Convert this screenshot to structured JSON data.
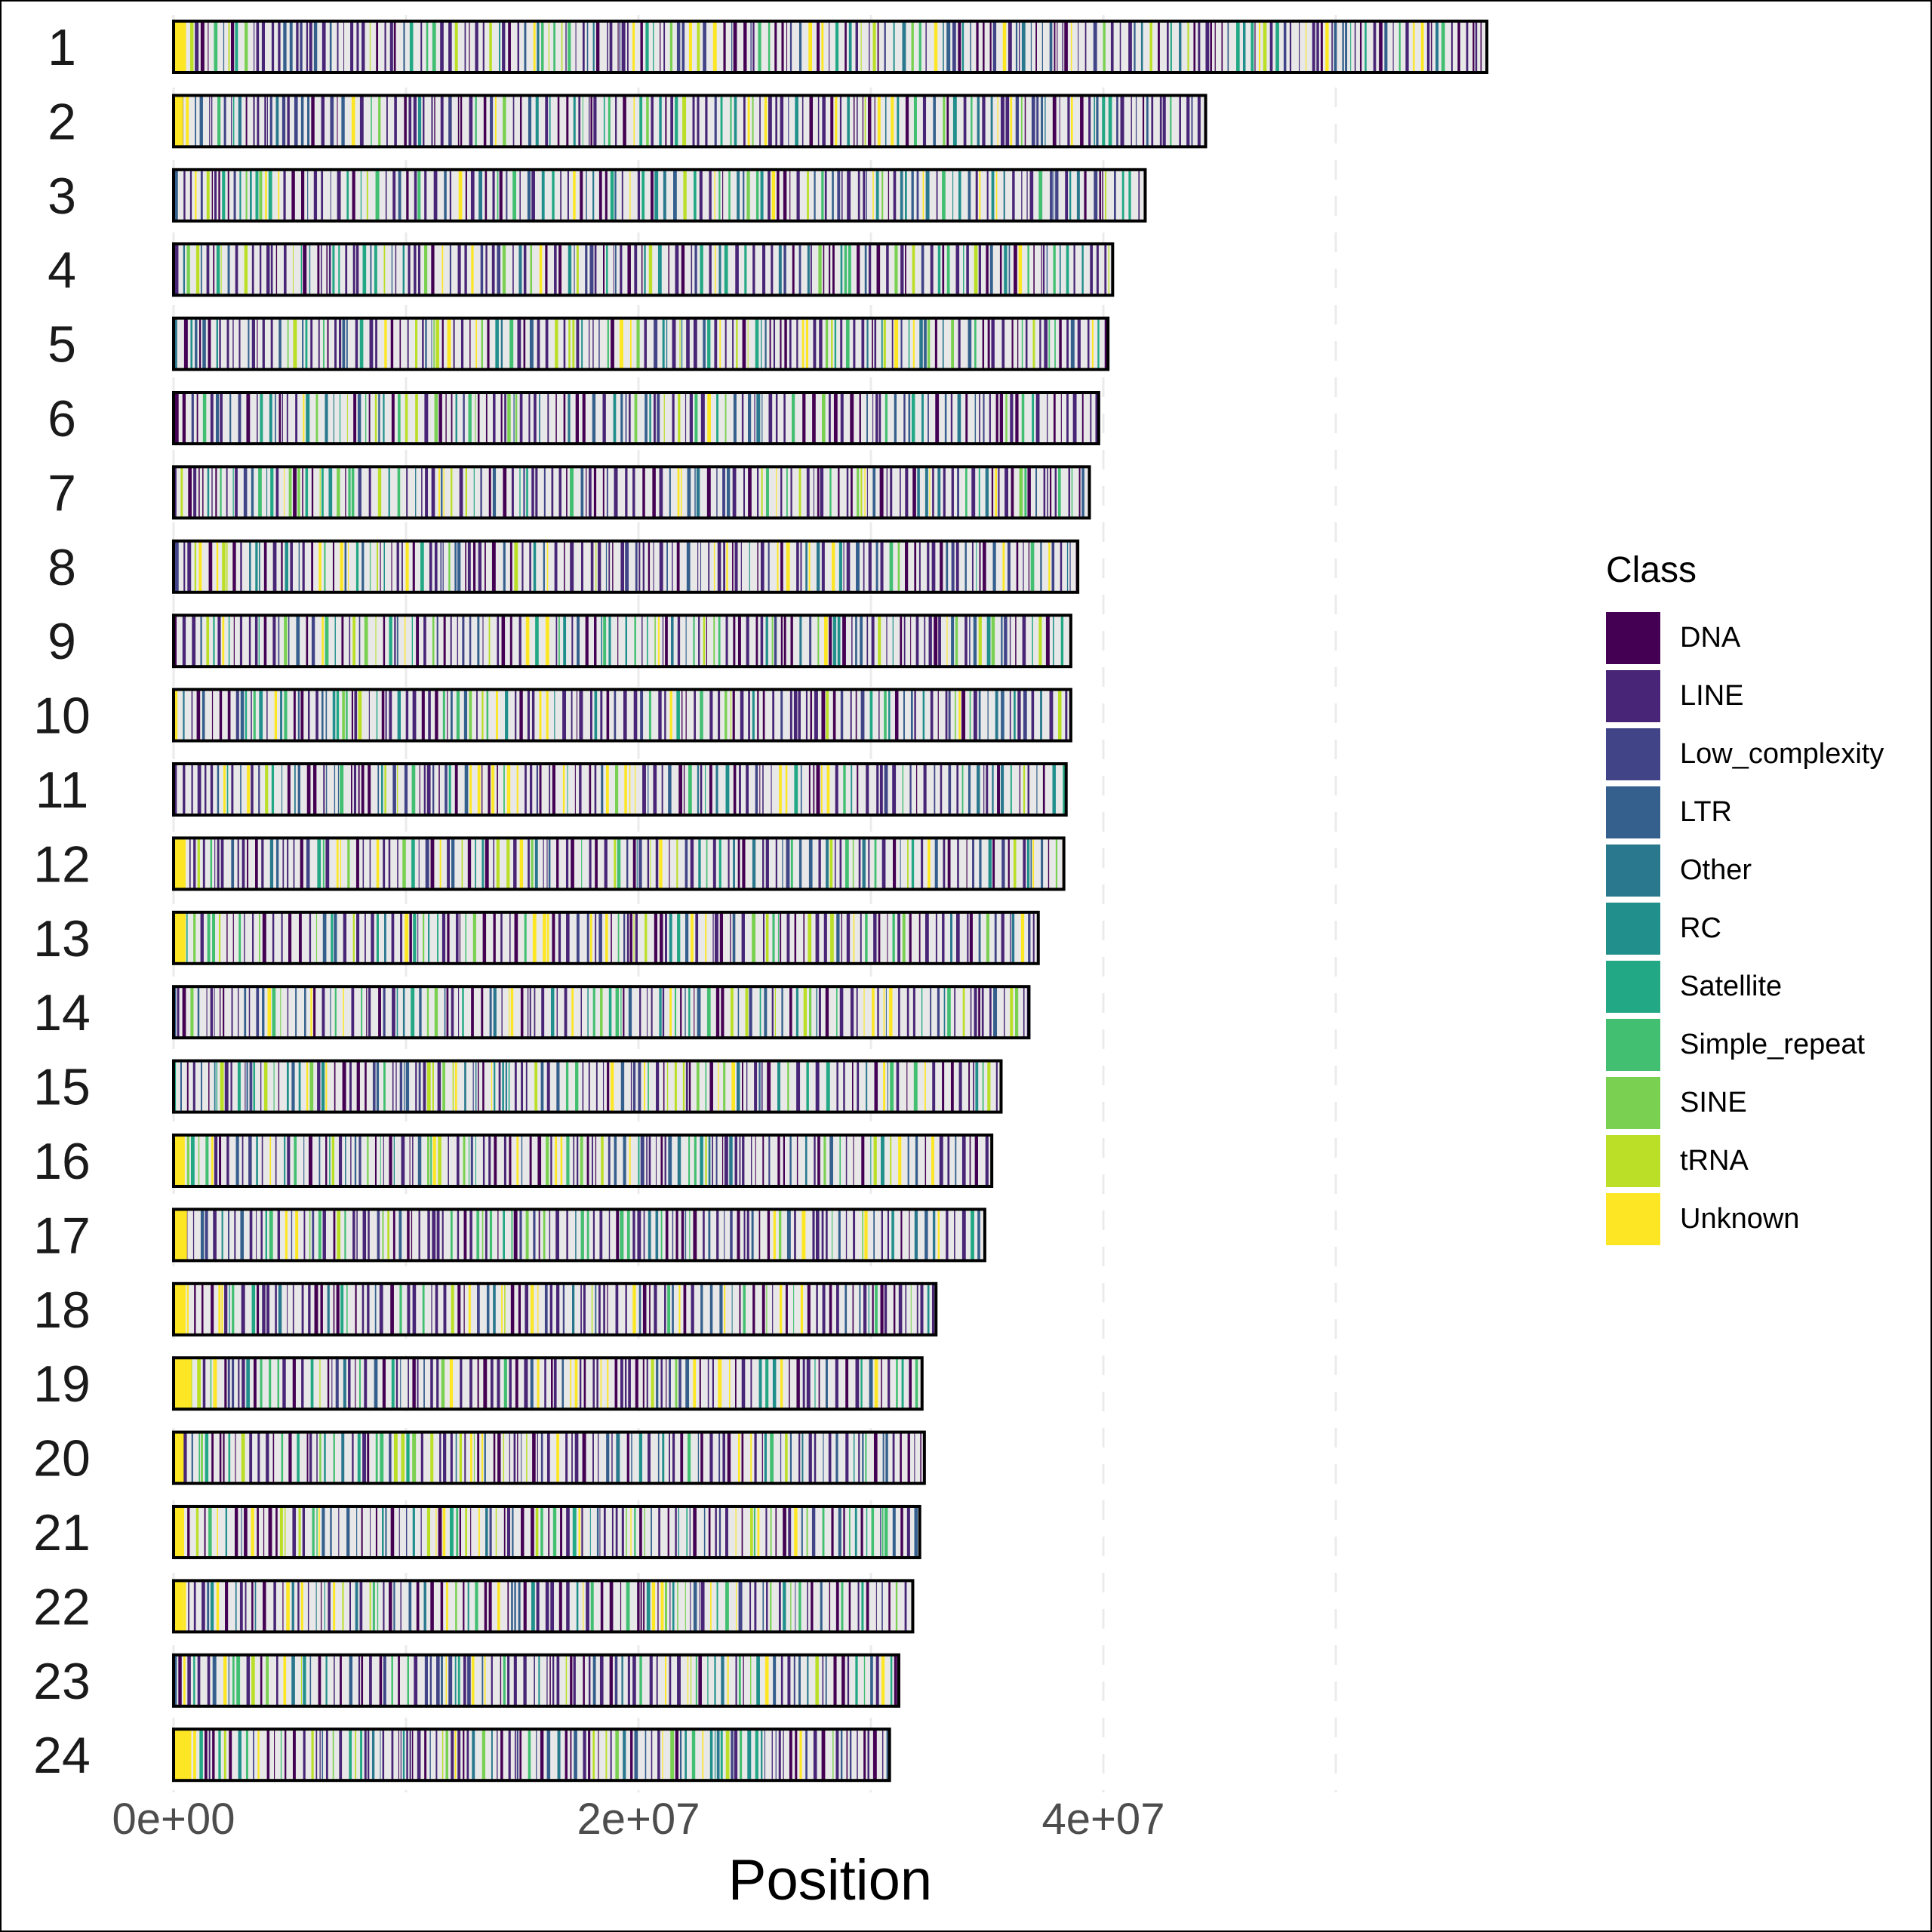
{
  "chart_data": {
    "type": "bar",
    "subtype": "chromosome ideogram / heatstrip",
    "title": "",
    "xlabel": "Position",
    "ylabel": "",
    "xlim": [
      0,
      57000000
    ],
    "x_ticks": [
      {
        "value": 0,
        "label": "0e+00"
      },
      {
        "value": 20000000,
        "label": "2e+07"
      },
      {
        "value": 40000000,
        "label": "4e+07"
      }
    ],
    "grid_lines_x": [
      0,
      10000000,
      20000000,
      30000000,
      40000000,
      50000000
    ],
    "grid": true,
    "categories": [
      "1",
      "2",
      "3",
      "4",
      "5",
      "6",
      "7",
      "8",
      "9",
      "10",
      "11",
      "12",
      "13",
      "14",
      "15",
      "16",
      "17",
      "18",
      "19",
      "20",
      "21",
      "22",
      "23",
      "24"
    ],
    "values": [
      56500000,
      44400000,
      41800000,
      40400000,
      40200000,
      39800000,
      39400000,
      38900000,
      38600000,
      38600000,
      38400000,
      38300000,
      37200000,
      36800000,
      35600000,
      35200000,
      34900000,
      32800000,
      32200000,
      32300000,
      32100000,
      31800000,
      31200000,
      30800000
    ],
    "legend": {
      "title": "Class",
      "placement": "right",
      "entries": [
        {
          "name": "DNA",
          "color": "#440154"
        },
        {
          "name": "LINE",
          "color": "#482576"
        },
        {
          "name": "Low_complexity",
          "color": "#414487"
        },
        {
          "name": "LTR",
          "color": "#35608D"
        },
        {
          "name": "Other",
          "color": "#2A788E"
        },
        {
          "name": "RC",
          "color": "#21908C"
        },
        {
          "name": "Satellite",
          "color": "#22A884"
        },
        {
          "name": "Simple_repeat",
          "color": "#43BF71"
        },
        {
          "name": "SINE",
          "color": "#7AD151"
        },
        {
          "name": "tRNA",
          "color": "#BBDF27"
        },
        {
          "name": "Unknown",
          "color": "#FDE725"
        }
      ]
    },
    "background_fill": "#E8E8E8"
  }
}
